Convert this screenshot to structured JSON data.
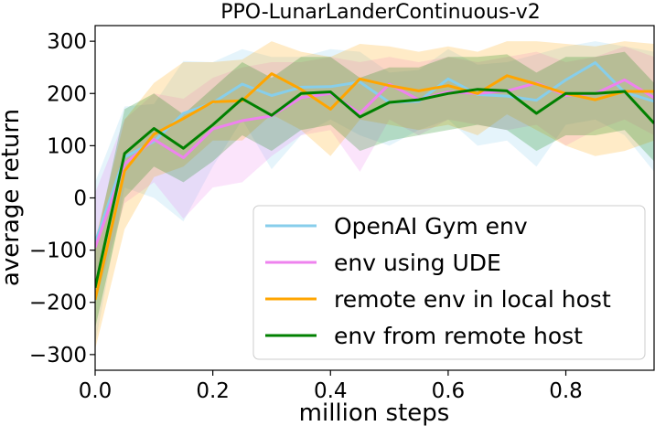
{
  "chart_data": {
    "type": "line",
    "title": "PPO-LunarLanderContinuous-v2",
    "xlabel": "million steps",
    "ylabel": "average return",
    "xlim": [
      0.0,
      0.95
    ],
    "ylim": [
      -330,
      330
    ],
    "xticks": [
      0.0,
      0.2,
      0.4,
      0.6,
      0.8
    ],
    "xtick_labels": [
      "0.0",
      "0.2",
      "0.4",
      "0.6",
      "0.8"
    ],
    "yticks": [
      -300,
      -200,
      -100,
      0,
      100,
      200,
      300
    ],
    "ytick_labels": [
      "−300",
      "−200",
      "−100",
      "0",
      "100",
      "200",
      "300"
    ],
    "grid": false,
    "legend_position": "lower-right",
    "x": [
      0.0,
      0.05,
      0.1,
      0.15,
      0.2,
      0.25,
      0.3,
      0.35,
      0.4,
      0.45,
      0.5,
      0.55,
      0.6,
      0.65,
      0.7,
      0.75,
      0.8,
      0.85,
      0.9,
      0.95
    ],
    "series": [
      {
        "name": "OpenAI Gym env",
        "color": "#87ceeb",
        "values": [
          -85,
          78,
          108,
          162,
          182,
          218,
          196,
          212,
          213,
          222,
          183,
          185,
          228,
          198,
          195,
          187,
          226,
          259,
          202,
          185
        ],
        "lower": [
          -280,
          20,
          0,
          -45,
          60,
          150,
          55,
          120,
          150,
          120,
          100,
          130,
          150,
          100,
          110,
          60,
          140,
          150,
          120,
          50
        ],
        "upper": [
          30,
          175,
          180,
          262,
          260,
          285,
          270,
          270,
          285,
          280,
          240,
          245,
          285,
          255,
          260,
          275,
          290,
          300,
          290,
          280
        ]
      },
      {
        "name": "env using UDE",
        "color": "#ee82ee",
        "values": [
          -95,
          65,
          112,
          77,
          132,
          148,
          157,
          192,
          200,
          162,
          218,
          188,
          203,
          200,
          205,
          220,
          196,
          200,
          226,
          192
        ],
        "lower": [
          -200,
          -10,
          30,
          -40,
          20,
          30,
          80,
          120,
          130,
          50,
          150,
          120,
          150,
          140,
          130,
          140,
          100,
          130,
          150,
          120
        ],
        "upper": [
          10,
          150,
          200,
          190,
          230,
          250,
          260,
          260,
          270,
          260,
          270,
          260,
          270,
          260,
          270,
          280,
          260,
          270,
          290,
          270
        ]
      },
      {
        "name": "remote env in local host",
        "color": "#ffa500",
        "values": [
          -195,
          52,
          122,
          152,
          184,
          186,
          238,
          208,
          170,
          228,
          215,
          205,
          215,
          200,
          234,
          218,
          200,
          188,
          204,
          204
        ],
        "lower": [
          -290,
          -60,
          40,
          60,
          110,
          110,
          160,
          130,
          80,
          150,
          140,
          130,
          140,
          120,
          160,
          130,
          100,
          80,
          90,
          110
        ],
        "upper": [
          -80,
          150,
          220,
          260,
          260,
          265,
          300,
          280,
          270,
          295,
          290,
          280,
          290,
          280,
          300,
          300,
          295,
          290,
          300,
          295
        ]
      },
      {
        "name": "env from remote host",
        "color": "#008000",
        "values": [
          -172,
          85,
          133,
          95,
          140,
          190,
          158,
          200,
          203,
          155,
          183,
          188,
          200,
          208,
          205,
          162,
          200,
          200,
          204,
          143
        ],
        "lower": [
          -250,
          0,
          60,
          30,
          70,
          120,
          90,
          130,
          140,
          90,
          110,
          120,
          130,
          140,
          130,
          90,
          120,
          120,
          130,
          70
        ],
        "upper": [
          -90,
          170,
          200,
          160,
          210,
          260,
          230,
          270,
          270,
          230,
          250,
          250,
          270,
          270,
          275,
          240,
          270,
          270,
          280,
          220
        ]
      }
    ]
  }
}
